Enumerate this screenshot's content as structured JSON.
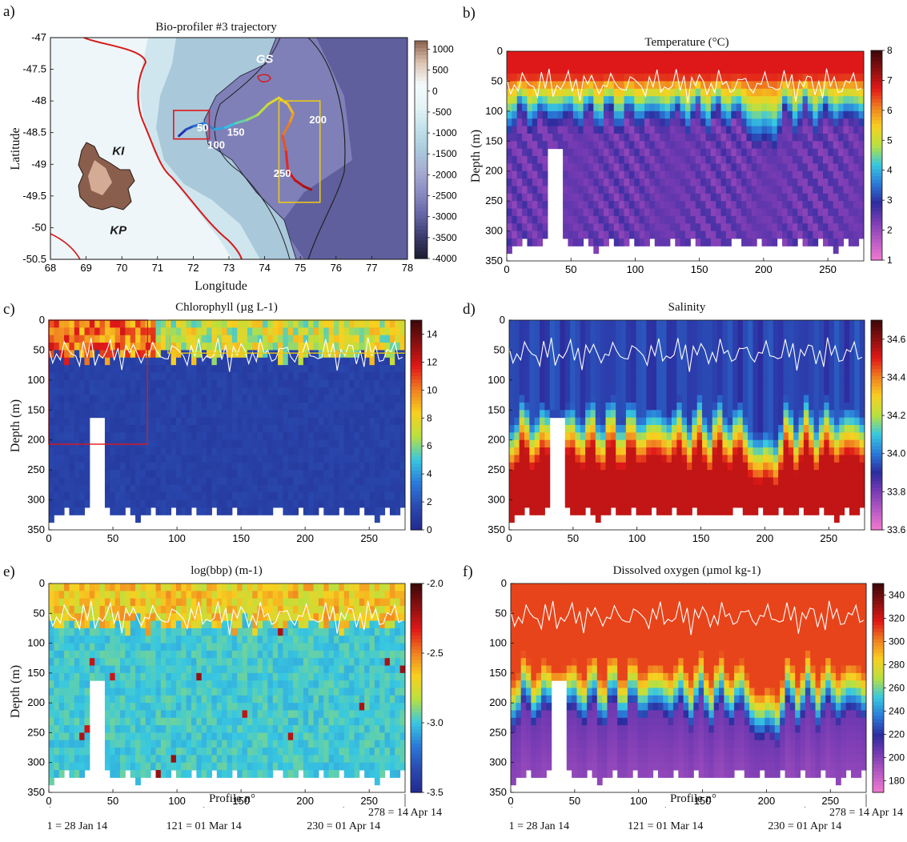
{
  "footer": {
    "left": {
      "profile_label": "Profile n°",
      "date_labels": [
        {
          "profile": 1,
          "text": "1 = 28 Jan 14"
        },
        {
          "profile": 121,
          "text": "121 = 01 Mar 14"
        },
        {
          "profile": 230,
          "text": "230 = 01 Apr 14"
        },
        {
          "profile": 278,
          "text": "278 = 14 Apr 14"
        }
      ]
    },
    "right": {
      "profile_label": "Profile n°",
      "date_labels": [
        {
          "profile": 1,
          "text": "1 = 28 Jan 14"
        },
        {
          "profile": 121,
          "text": "121 = 01 Mar 14"
        },
        {
          "profile": 230,
          "text": "230 = 01 Apr 14"
        },
        {
          "profile": 278,
          "text": "278 = 14 Apr 14"
        }
      ]
    }
  },
  "chart_data": [
    {
      "id": "a",
      "type": "map",
      "panel_label": "a)",
      "title": "Bio-profiler #3 trajectory",
      "xlabel": "Longitude",
      "ylabel": "Latitude",
      "xlim": [
        68,
        78
      ],
      "ylim": [
        -50.5,
        -47
      ],
      "xticks": [
        "68",
        "69",
        "70",
        "71",
        "72",
        "73",
        "74",
        "75",
        "76",
        "77",
        "78"
      ],
      "yticks": [
        "-47",
        "-47.5",
        "-48",
        "-48.5",
        "-49",
        "-49.5",
        "-50",
        "-50.5"
      ],
      "colorbar": {
        "ticks": [
          "1000",
          "500",
          "0",
          "-500",
          "-1000",
          "-1500",
          "-2000",
          "-2500",
          "-3000",
          "-3500",
          "-4000"
        ],
        "range": [
          -4000,
          1200
        ],
        "colors": [
          "#1c1c2e",
          "#3c3c6e",
          "#6565a6",
          "#8a8ac0",
          "#a7abd3",
          "#a9cbdc",
          "#c3e2ea",
          "#e6f3f6",
          "#f4f9fb",
          "#dcc3b0",
          "#8a5e4c"
        ]
      },
      "annotations": [
        {
          "text": "GS",
          "lon": 74.0,
          "lat": -47.4
        },
        {
          "text": "KI",
          "lon": 69.9,
          "lat": -48.85
        },
        {
          "text": "KP",
          "lon": 69.9,
          "lat": -50.1
        }
      ],
      "track_labels": [
        {
          "text": "50",
          "lon": 72.1,
          "lat": -48.48
        },
        {
          "text": "100",
          "lon": 72.4,
          "lat": -48.75
        },
        {
          "text": "150",
          "lon": 72.95,
          "lat": -48.55
        },
        {
          "text": "200",
          "lon": 75.25,
          "lat": -48.35
        },
        {
          "text": "250",
          "lon": 74.25,
          "lat": -49.2
        }
      ],
      "track": [
        [
          71.6,
          -48.55
        ],
        [
          71.8,
          -48.45
        ],
        [
          72.0,
          -48.4
        ],
        [
          72.3,
          -48.35
        ],
        [
          72.6,
          -48.45
        ],
        [
          72.9,
          -48.42
        ],
        [
          73.2,
          -48.35
        ],
        [
          73.5,
          -48.3
        ],
        [
          73.8,
          -48.22
        ],
        [
          74.1,
          -48.05
        ],
        [
          74.4,
          -47.95
        ],
        [
          74.65,
          -48.05
        ],
        [
          74.8,
          -48.2
        ],
        [
          74.7,
          -48.35
        ],
        [
          74.5,
          -48.55
        ],
        [
          74.6,
          -48.8
        ],
        [
          74.65,
          -49.1
        ],
        [
          74.85,
          -49.25
        ],
        [
          75.1,
          -49.35
        ],
        [
          75.3,
          -49.4
        ]
      ],
      "boxes": [
        {
          "color": "red",
          "lon": [
            71.45,
            72.45
          ],
          "lat": [
            -48.15,
            -48.6
          ]
        },
        {
          "color": "yellow",
          "lon": [
            74.4,
            75.55
          ],
          "lat": [
            -48.0,
            -49.6
          ]
        }
      ]
    },
    {
      "id": "b",
      "type": "heatmap",
      "panel_label": "b)",
      "title": "Temperature (°C)",
      "ylabel": "Depth (m)",
      "xlim": [
        0,
        278
      ],
      "ylim": [
        0,
        350
      ],
      "xticks": [
        "0",
        "50",
        "100",
        "150",
        "200",
        "250"
      ],
      "yticks": [
        "0",
        "50",
        "100",
        "150",
        "200",
        "250",
        "300",
        "350"
      ],
      "colorbar": {
        "ticks": [
          "1",
          "2",
          "3",
          "4",
          "5",
          "6",
          "7",
          "8"
        ],
        "range": [
          1,
          8
        ],
        "colors": [
          "#f07ad0",
          "#b85bc4",
          "#7a3cb4",
          "#2c2c9e",
          "#2a7ad8",
          "#38c8e0",
          "#b8e040",
          "#f8d020",
          "#f08020",
          "#e01818",
          "#8a1010",
          "#3a0808"
        ]
      }
    },
    {
      "id": "c",
      "type": "heatmap",
      "panel_label": "c)",
      "title": "Chlorophyll (µg L-1)",
      "ylabel": "Depth (m)",
      "xlim": [
        0,
        278
      ],
      "ylim": [
        0,
        350
      ],
      "xticks": [
        "0",
        "50",
        "100",
        "150",
        "200",
        "250"
      ],
      "yticks": [
        "0",
        "50",
        "100",
        "150",
        "200",
        "250",
        "300",
        "350"
      ],
      "colorbar": {
        "ticks": [
          "0",
          "2",
          "4",
          "6",
          "8",
          "10",
          "12",
          "14"
        ],
        "range": [
          0,
          15
        ],
        "colors": [
          "#222a8e",
          "#2a4ab0",
          "#2a7ad8",
          "#38c8e0",
          "#b8e040",
          "#f8d020",
          "#f08020",
          "#e01818",
          "#8a1010",
          "#3a0808"
        ]
      },
      "boxes": [
        {
          "color": "red",
          "x": [
            0,
            77
          ],
          "depth": [
            0,
            207
          ]
        },
        {
          "color": "yellow",
          "x": [
            93,
            278
          ],
          "depth": [
            0,
            55
          ]
        }
      ]
    },
    {
      "id": "d",
      "type": "heatmap",
      "panel_label": "d)",
      "title": "Salinity",
      "xlim": [
        0,
        278
      ],
      "ylim": [
        0,
        350
      ],
      "xticks": [
        "0",
        "50",
        "100",
        "150",
        "200",
        "250"
      ],
      "yticks": [
        "0",
        "50",
        "100",
        "150",
        "200",
        "250",
        "300",
        "350"
      ],
      "colorbar": {
        "ticks": [
          "33.6",
          "33.8",
          "34.0",
          "34.2",
          "34.4",
          "34.6"
        ],
        "range": [
          33.6,
          34.7
        ],
        "colors": [
          "#f07ad0",
          "#b85bc4",
          "#7a3cb4",
          "#2c2c9e",
          "#2a7ad8",
          "#38c8e0",
          "#b8e040",
          "#f8d020",
          "#f08020",
          "#e01818",
          "#8a1010",
          "#3a0808"
        ]
      }
    },
    {
      "id": "e",
      "type": "heatmap",
      "panel_label": "e)",
      "title": "log(bbp) (m-1)",
      "ylabel": "Depth (m)",
      "xlim": [
        0,
        278
      ],
      "ylim": [
        0,
        350
      ],
      "xticks": [
        "0",
        "50",
        "100",
        "150",
        "200",
        "250"
      ],
      "yticks": [
        "0",
        "50",
        "100",
        "150",
        "200",
        "250",
        "300",
        "350"
      ],
      "colorbar": {
        "ticks": [
          "-2.0",
          "-2.5",
          "-3.0",
          "-3.5"
        ],
        "range": [
          -3.5,
          -2.0
        ],
        "colors": [
          "#222a8e",
          "#2a4ab0",
          "#2a7ad8",
          "#38c8e0",
          "#b8e040",
          "#f8d020",
          "#f08020",
          "#e01818",
          "#8a1010",
          "#3a0808"
        ]
      }
    },
    {
      "id": "f",
      "type": "heatmap",
      "panel_label": "f)",
      "title": "Dissolved oxygen (µmol kg-1)",
      "xlim": [
        0,
        278
      ],
      "ylim": [
        0,
        350
      ],
      "xticks": [
        "0",
        "50",
        "100",
        "150",
        "200",
        "250"
      ],
      "yticks": [
        "0",
        "50",
        "100",
        "150",
        "200",
        "250",
        "300",
        "350"
      ],
      "colorbar": {
        "ticks": [
          "180",
          "200",
          "220",
          "240",
          "260",
          "280",
          "300",
          "320",
          "340"
        ],
        "range": [
          170,
          350
        ],
        "colors": [
          "#f07ad0",
          "#b85bc4",
          "#7a3cb4",
          "#2c2c9e",
          "#2a7ad8",
          "#38c8e0",
          "#b8e040",
          "#f8d020",
          "#f08020",
          "#e01818",
          "#8a1010",
          "#3a0808"
        ]
      }
    }
  ]
}
